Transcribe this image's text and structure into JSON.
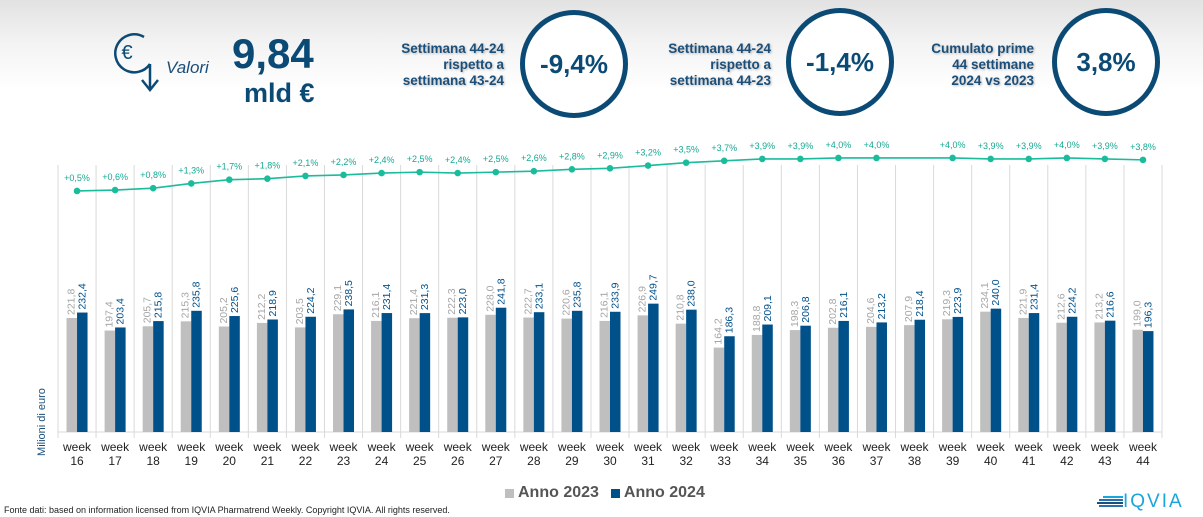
{
  "header": {
    "icon": "euro-down-arrow-icon",
    "valori_label": "Valori",
    "total_value": "9,84",
    "total_unit": "mld €",
    "kpis": [
      {
        "label_lines": [
          "Settimana 44-24",
          "rispetto a",
          "settimana 43-24"
        ],
        "value": "-9,4%"
      },
      {
        "label_lines": [
          "Settimana 44-24",
          "rispetto a",
          "settimana 44-23"
        ],
        "value": "-1,4%"
      },
      {
        "label_lines": [
          "Cumulato prime",
          "44 settimane",
          "2024 vs 2023"
        ],
        "value": "3,8%"
      }
    ]
  },
  "colors": {
    "anno_2023": "#bfbfbf",
    "anno_2024": "#00508a",
    "growth_line": "#1abc9c",
    "accent": "#0b4a75"
  },
  "chart_data": {
    "type": "bar",
    "title": "",
    "xlabel": "",
    "ylabel": "Milioni di euro",
    "ylim": [
      0,
      520
    ],
    "grid": "vertical category separators",
    "legend": "bottom-center",
    "categories": [
      "week 16",
      "week 17",
      "week 18",
      "week 19",
      "week 20",
      "week 21",
      "week 22",
      "week 23",
      "week 24",
      "week 25",
      "week 26",
      "week 27",
      "week 28",
      "week 29",
      "week 30",
      "week 31",
      "week 32",
      "week 33",
      "week 34",
      "week 35",
      "week 36",
      "week 37",
      "week 38",
      "week 39",
      "week 40",
      "week 41",
      "week 42",
      "week 43",
      "week 44"
    ],
    "series": [
      {
        "name": "Anno 2023",
        "values": [
          221.8,
          197.4,
          205.7,
          215.3,
          205.2,
          212.2,
          203.5,
          229.1,
          216.1,
          221.4,
          222.3,
          228.0,
          222.7,
          220.6,
          216.1,
          226.9,
          210.8,
          164.2,
          188.8,
          198.3,
          202.8,
          204.6,
          207.9,
          219.3,
          234.1,
          221.9,
          212.6,
          213.2,
          199.0
        ]
      },
      {
        "name": "Anno 2024",
        "values": [
          232.4,
          203.4,
          215.8,
          235.8,
          225.6,
          218.9,
          224.2,
          238.5,
          231.4,
          231.3,
          223.0,
          241.8,
          233.1,
          235.8,
          233.9,
          249.7,
          238.0,
          186.3,
          209.1,
          206.8,
          216.1,
          213.2,
          218.4,
          223.9,
          240.0,
          231.4,
          224.2,
          216.6,
          196.3
        ]
      }
    ],
    "line_series": {
      "name": "Crescita cumulata %",
      "type": "line",
      "values": [
        0.5,
        0.6,
        0.8,
        1.3,
        1.7,
        1.8,
        2.1,
        2.2,
        2.4,
        2.5,
        2.4,
        2.5,
        2.6,
        2.8,
        2.9,
        3.2,
        3.5,
        3.7,
        3.9,
        3.9,
        4.0,
        4.0,
        null,
        4.0,
        3.9,
        3.9,
        4.0,
        3.9,
        3.8
      ],
      "labels": [
        "+0,5%",
        "+0,6%",
        "+0,8%",
        "+1,3%",
        "+1,7%",
        "+1,8%",
        "+2,1%",
        "+2,2%",
        "+2,4%",
        "+2,5%",
        "+2,4%",
        "+2,5%",
        "+2,6%",
        "+2,8%",
        "+2,9%",
        "+3,2%",
        "+3,5%",
        "+3,7%",
        "+3,9%",
        "+3,9%",
        "+4,0%",
        "+4,0%",
        null,
        "+4,0%",
        "+3,9%",
        "+3,9%",
        "+4,0%",
        "+3,9%",
        "+3,8%"
      ]
    },
    "bar_labels_2023": [
      "221,8",
      "197,4",
      "205,7",
      "215,3",
      "205,2",
      "212,2",
      "203,5",
      "229,1",
      "216,1",
      "221,4",
      "222,3",
      "228,0",
      "222,7",
      "220,6",
      "216,1",
      "226,9",
      "210,8",
      "164,2",
      "188,8",
      "198,3",
      "202,8",
      "204,6",
      "207,9",
      "219,3",
      "234,1",
      "221,9",
      "212,6",
      "213,2",
      "199,0"
    ],
    "bar_labels_2024": [
      "232,4",
      "203,4",
      "215,8",
      "235,8",
      "225,6",
      "218,9",
      "224,2",
      "238,5",
      "231,4",
      "231,3",
      "223,0",
      "241,8",
      "233,1",
      "235,8",
      "233,9",
      "249,7",
      "238,0",
      "186,3",
      "209,1",
      "206,8",
      "216,1",
      "213,2",
      "218,4",
      "223,9",
      "240,0",
      "231,4",
      "224,2",
      "216,6",
      "196,3"
    ],
    "x_tick_top": "week",
    "x_tick_bottom": [
      "16",
      "17",
      "18",
      "19",
      "20",
      "21",
      "22",
      "23",
      "24",
      "25",
      "26",
      "27",
      "28",
      "29",
      "30",
      "31",
      "32",
      "33",
      "34",
      "35",
      "36",
      "37",
      "38",
      "39",
      "40",
      "41",
      "42",
      "43",
      "44"
    ]
  },
  "legend": [
    {
      "label": "Anno 2023",
      "color": "#bfbfbf"
    },
    {
      "label": "Anno 2024",
      "color": "#00508a"
    }
  ],
  "footer": {
    "source": "Fonte dati: based on information licensed from IQVIA Pharmatrend Weekly. Copyright IQVIA. All rights reserved."
  },
  "logo": {
    "text": "IQVIA",
    "icon": "iqvia-stripes-icon"
  }
}
